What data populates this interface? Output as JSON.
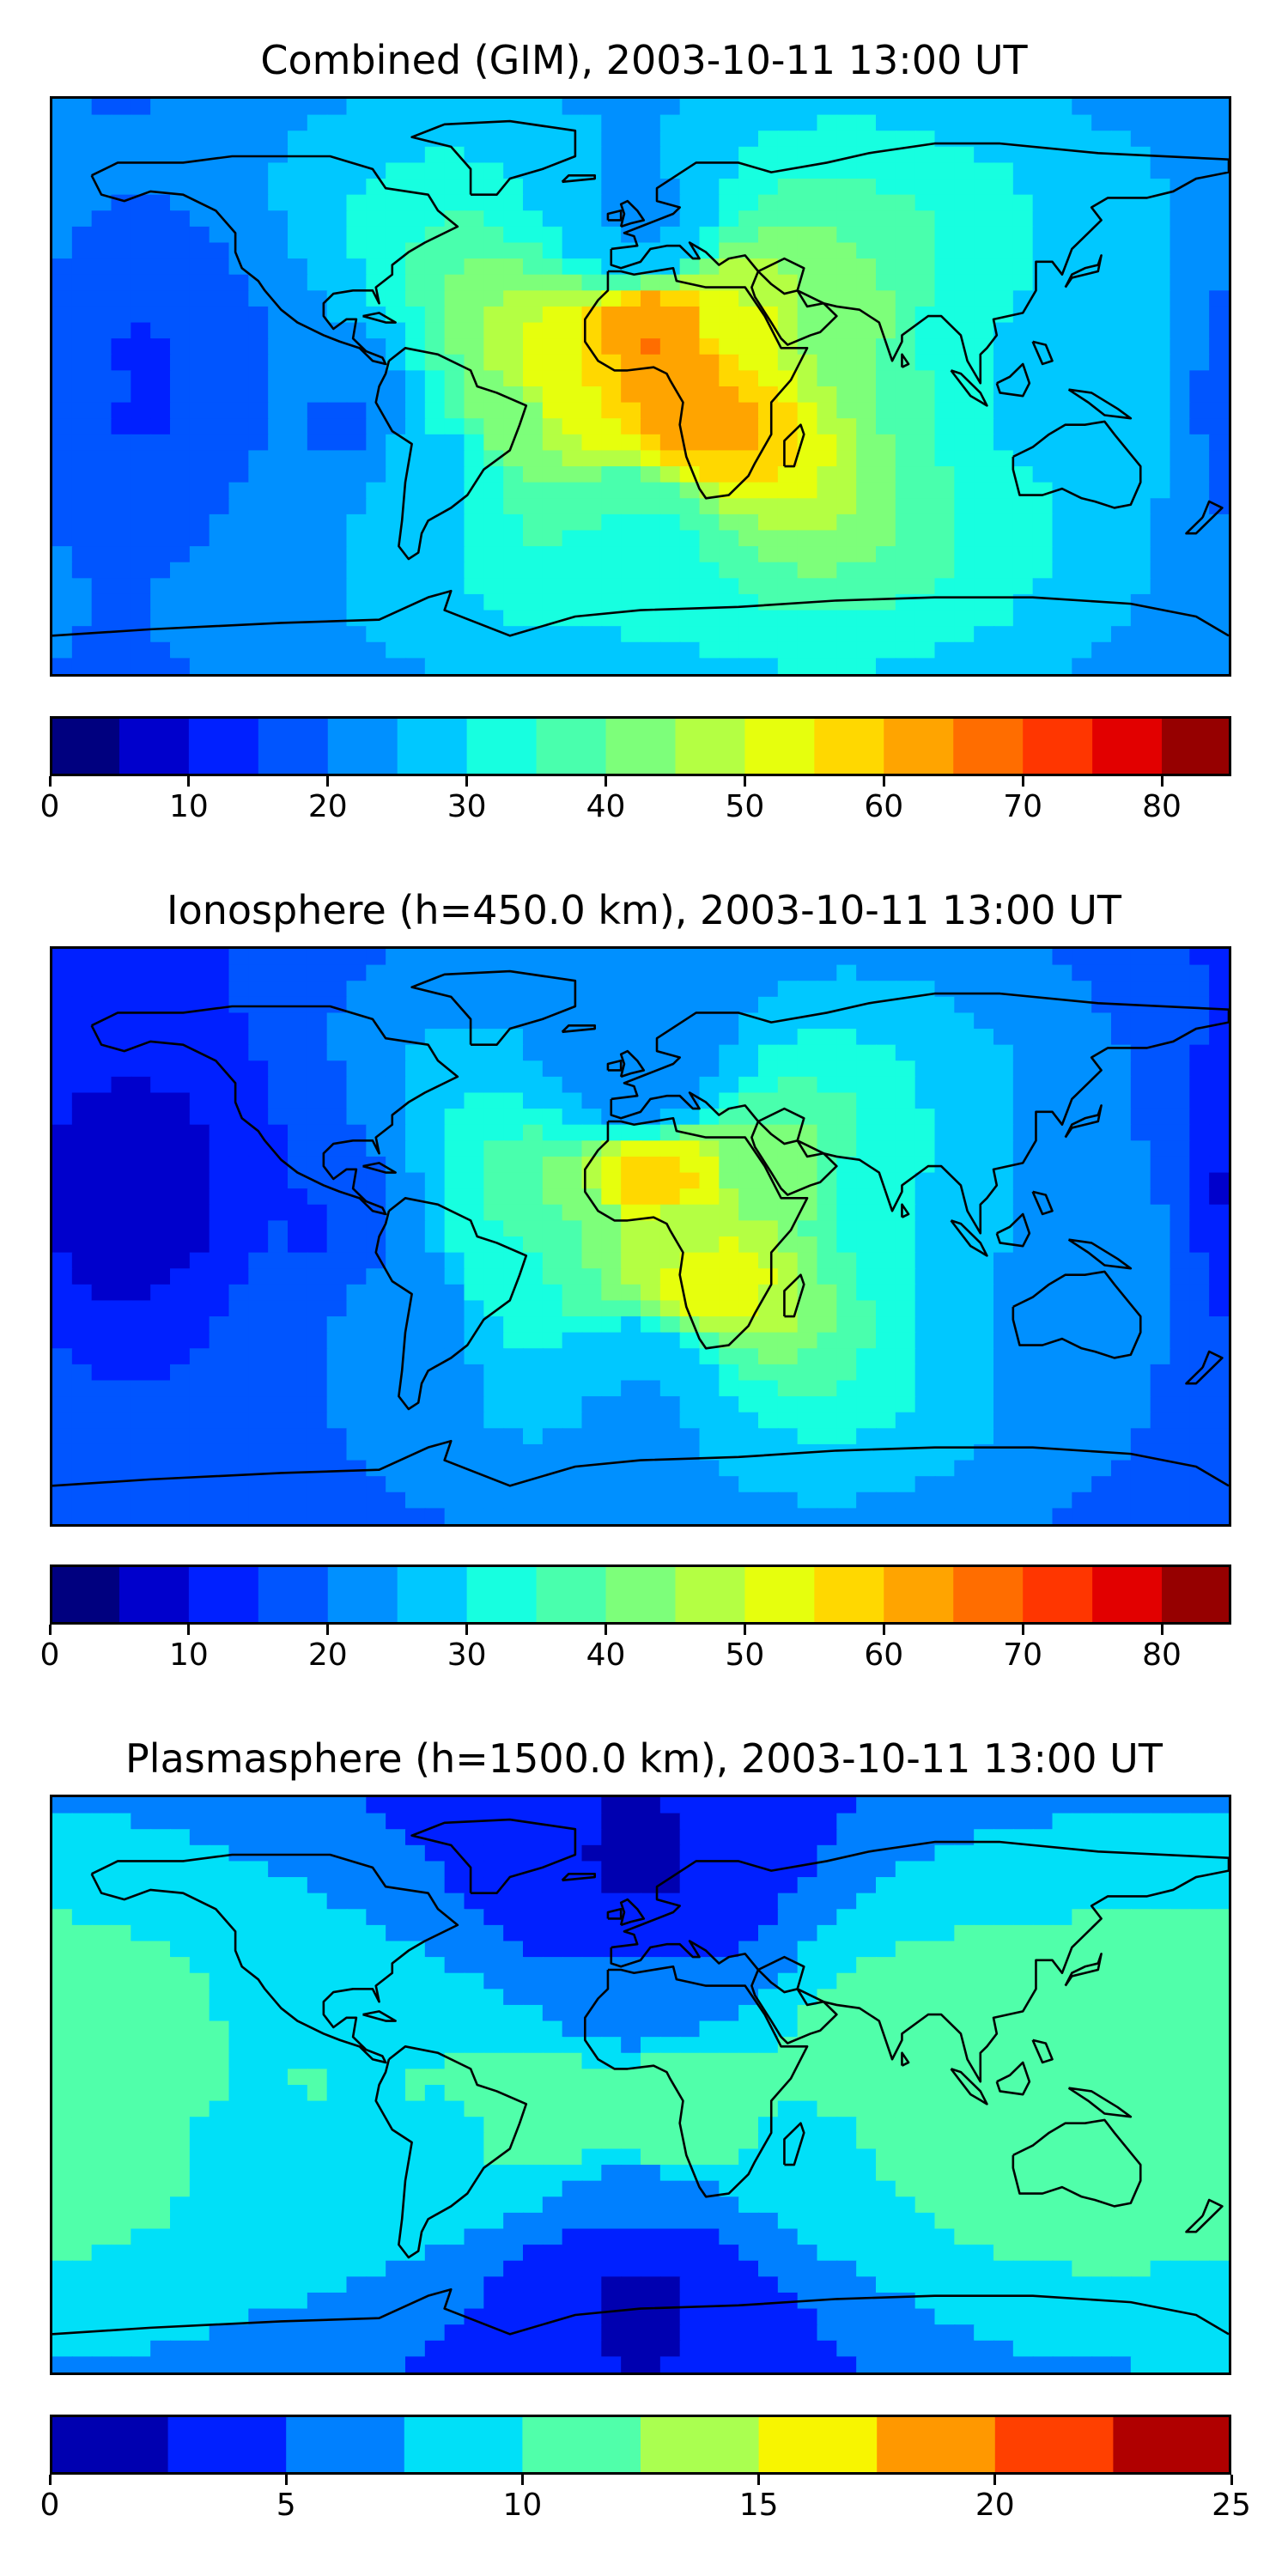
{
  "colors": {
    "c17": [
      "#00007f",
      "#0000cc",
      "#0020ff",
      "#0055ff",
      "#0090ff",
      "#00c8ff",
      "#17ffe0",
      "#49ffad",
      "#7dff7a",
      "#b4ff43",
      "#e6ff0d",
      "#ffd800",
      "#ffa400",
      "#ff6d00",
      "#ff3600",
      "#e20000",
      "#960000"
    ],
    "c10": [
      "#0000b0",
      "#0020ff",
      "#0080ff",
      "#00e0f8",
      "#50ffaa",
      "#aaff50",
      "#f8f500",
      "#ff9800",
      "#ff4000",
      "#b00000"
    ]
  },
  "panels": [
    {
      "title": "Combined (GIM), 2003-10-11 13:00 UT",
      "colorbar": {
        "vmin": 0,
        "vmax": 85,
        "step": 5,
        "palette": "c17",
        "ticks": [
          "0",
          "10",
          "20",
          "30",
          "40",
          "50",
          "60",
          "70",
          "80"
        ]
      },
      "field": [
        {
          "lon": 10,
          "lat": 0,
          "v": 63
        },
        {
          "lon": 5,
          "lat": 18,
          "v": 66
        },
        {
          "lon": 20,
          "lat": -14,
          "v": 62
        },
        {
          "lon": 30,
          "lat": 20,
          "v": 52
        },
        {
          "lon": 60,
          "lat": 18,
          "v": 44
        },
        {
          "lon": 90,
          "lat": 10,
          "v": 35
        },
        {
          "lon": 120,
          "lat": 5,
          "v": 28
        },
        {
          "lon": -20,
          "lat": 0,
          "v": 55
        },
        {
          "lon": -40,
          "lat": -10,
          "v": 44
        },
        {
          "lon": -60,
          "lat": -20,
          "v": 30
        },
        {
          "lon": -90,
          "lat": -10,
          "v": 20
        },
        {
          "lon": 0,
          "lat": -40,
          "v": 38
        },
        {
          "lon": 0,
          "lat": 45,
          "v": 28
        },
        {
          "lon": -150,
          "lat": 0,
          "v": 15
        }
      ]
    },
    {
      "title": "Ionosphere  (h=450.0 km), 2003-10-11 13:00 UT",
      "colorbar": {
        "vmin": 0,
        "vmax": 85,
        "step": 5,
        "palette": "c17",
        "ticks": [
          "0",
          "10",
          "20",
          "30",
          "40",
          "50",
          "60",
          "70",
          "80"
        ]
      },
      "field": [
        {
          "lon": 5,
          "lat": 18,
          "v": 58
        },
        {
          "lon": 20,
          "lat": -14,
          "v": 53
        },
        {
          "lon": 10,
          "lat": 0,
          "v": 48
        },
        {
          "lon": 40,
          "lat": 18,
          "v": 44
        },
        {
          "lon": 70,
          "lat": 10,
          "v": 34
        },
        {
          "lon": 100,
          "lat": 5,
          "v": 26
        },
        {
          "lon": 130,
          "lat": 0,
          "v": 22
        },
        {
          "lon": -20,
          "lat": 0,
          "v": 40
        },
        {
          "lon": -40,
          "lat": -10,
          "v": 34
        },
        {
          "lon": -70,
          "lat": -20,
          "v": 22
        },
        {
          "lon": -100,
          "lat": 0,
          "v": 15
        },
        {
          "lon": 0,
          "lat": -40,
          "v": 28
        },
        {
          "lon": 0,
          "lat": 45,
          "v": 24
        },
        {
          "lon": -155,
          "lat": 10,
          "v": 8
        }
      ]
    },
    {
      "title": "Plasmasphere (h=1500.0 km), 2003-10-11 13:00 UT",
      "colorbar": {
        "vmin": 0,
        "vmax": 25,
        "step": 2.5,
        "palette": "c10",
        "ticks": [
          "0",
          "5",
          "10",
          "15",
          "20",
          "25"
        ]
      },
      "field": [
        {
          "lon": -175,
          "lat": -5,
          "v": 12
        },
        {
          "lon": -120,
          "lat": -5,
          "v": 10
        },
        {
          "lon": -60,
          "lat": -10,
          "v": 10
        },
        {
          "lon": -30,
          "lat": -10,
          "v": 11
        },
        {
          "lon": 10,
          "lat": -10,
          "v": 12.5
        },
        {
          "lon": 50,
          "lat": -15,
          "v": 10
        },
        {
          "lon": 80,
          "lat": 10,
          "v": 11
        },
        {
          "lon": 95,
          "lat": 5,
          "v": 12.5
        },
        {
          "lon": 130,
          "lat": -15,
          "v": 12.5
        },
        {
          "lon": 160,
          "lat": 0,
          "v": 12
        },
        {
          "lon": 0,
          "lat": 30,
          "v": 6
        },
        {
          "lon": 0,
          "lat": -40,
          "v": 6
        },
        {
          "lon": 0,
          "lat": 55,
          "v": 3
        },
        {
          "lon": 0,
          "lat": -60,
          "v": 3
        }
      ]
    }
  ]
}
